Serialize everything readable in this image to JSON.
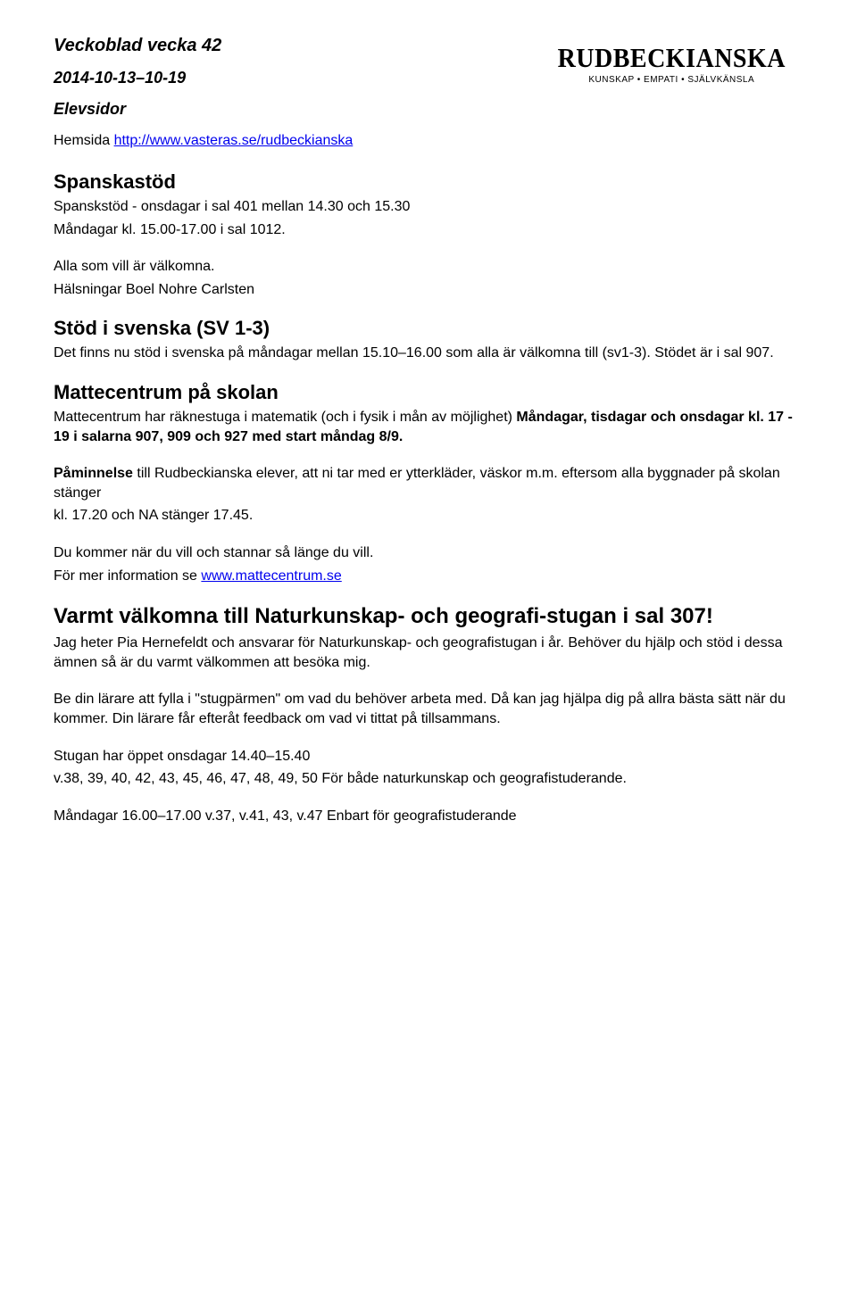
{
  "header": {
    "title": "Veckoblad vecka 42",
    "dates": "2014-10-13–10-19",
    "section": "Elevsidor",
    "hemsida_label": "Hemsida ",
    "hemsida_url": "http://www.vasteras.se/rudbeckianska"
  },
  "logo": {
    "name": "RUDBECKIANSKA",
    "tagline": "KUNSKAP • EMPATI • SJÄLVKÄNSLA"
  },
  "spanska": {
    "heading": "Spanskastöd",
    "line1": "Spanskstöd - onsdagar i sal 401 mellan 14.30 och 15.30",
    "line2": "Måndagar kl. 15.00-17.00 i sal 1012.",
    "line3": "Alla som vill är välkomna.",
    "line4": "Hälsningar Boel Nohre Carlsten"
  },
  "svenska": {
    "heading": "Stöd i svenska (SV 1-3)",
    "body": "Det finns nu stöd i svenska på måndagar mellan 15.10–16.00 som alla är välkomna till (sv1-3). Stödet är i sal 907."
  },
  "matte": {
    "heading": "Mattecentrum på skolan",
    "plain1": "Mattecentrum har räknestuga i matematik (och i fysik i mån av möjlighet) ",
    "bold1": "Måndagar, tisdagar och onsdagar kl. 17 - 19 i salarna 907, 909 och 927 med start måndag 8/9.",
    "reminder_bold": "Påminnelse",
    "reminder_rest": " till Rudbeckianska elever, att ni tar med er ytterkläder, väskor m.m. eftersom alla byggnader på skolan stänger",
    "reminder_line2": "kl. 17.20 och NA stänger 17.45.",
    "tail1": "Du kommer när du vill och stannar så länge du vill.",
    "tail2_pre": "För mer information se ",
    "tail2_link": "www.mattecentrum.se"
  },
  "naturkunskap": {
    "heading": "Varmt välkomna till Naturkunskap- och geografi-stugan i sal 307!",
    "p1": "Jag heter Pia Hernefeldt och ansvarar för Naturkunskap- och geografistugan i år. Behöver du hjälp och stöd i dessa ämnen så är du varmt välkommen att besöka mig.",
    "p2": "Be din lärare att fylla i \"stugpärmen\" om vad du behöver arbeta med. Då kan jag hjälpa dig på allra bästa sätt när du kommer. Din lärare får efteråt feedback om vad vi tittat på tillsammans.",
    "p3a": "Stugan har öppet onsdagar 14.40–15.40",
    "p3b": "v.38, 39, 40, 42, 43, 45, 46, 47, 48, 49, 50 För både naturkunskap och geografistuderande.",
    "p4": "Måndagar 16.00–17.00 v.37, v.41, 43, v.47 Enbart för geografistuderande"
  },
  "colors": {
    "text": "#000000",
    "link": "#0000ee",
    "background": "#ffffff"
  }
}
